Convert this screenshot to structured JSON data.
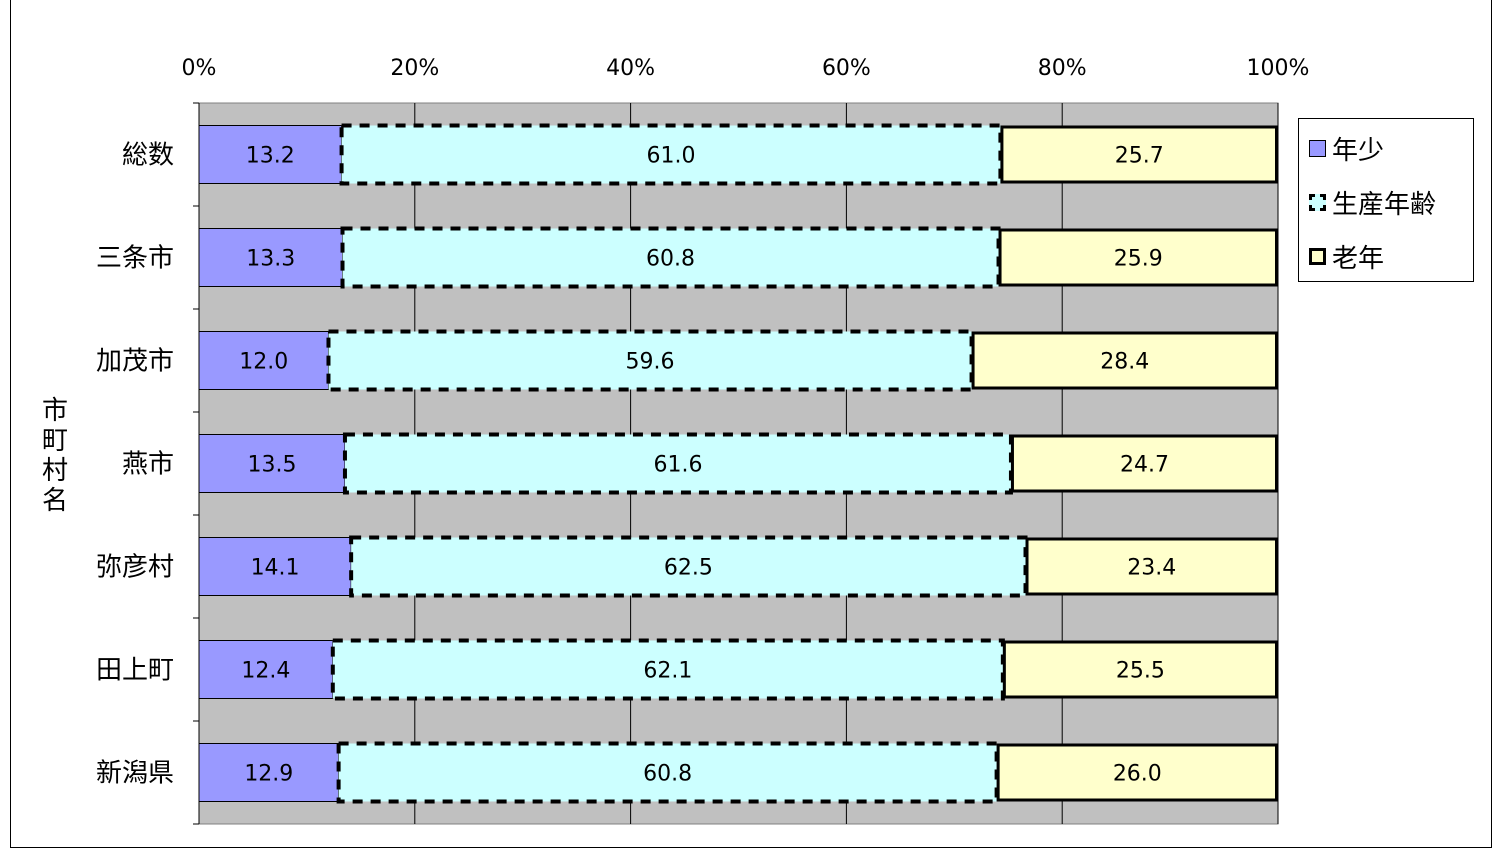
{
  "chart_data": {
    "type": "bar",
    "orientation": "horizontal",
    "stacked": "percent",
    "title": "",
    "xlabel": "",
    "ylabel": "市町村名",
    "xlim": [
      0,
      100
    ],
    "x_ticks": [
      "0%",
      "20%",
      "40%",
      "60%",
      "80%",
      "100%"
    ],
    "grid": true,
    "legend_position": "right",
    "categories": [
      "総数",
      "三条市",
      "加茂市",
      "燕市",
      "弥彦村",
      "田上町",
      "新潟県"
    ],
    "series": [
      {
        "name": "年少",
        "color": "#9999ff",
        "style": "solid",
        "values": [
          13.2,
          13.3,
          12.0,
          13.5,
          14.1,
          12.4,
          12.9
        ]
      },
      {
        "name": "生産年齢",
        "color": "#ccffff",
        "style": "dashed",
        "values": [
          61.0,
          60.8,
          59.6,
          61.6,
          62.5,
          62.1,
          60.8
        ]
      },
      {
        "name": "老年",
        "color": "#ffffcc",
        "style": "bold",
        "values": [
          25.7,
          25.9,
          28.4,
          24.7,
          23.4,
          25.5,
          26.0
        ]
      }
    ],
    "plot_background": "#c0c0c0"
  }
}
